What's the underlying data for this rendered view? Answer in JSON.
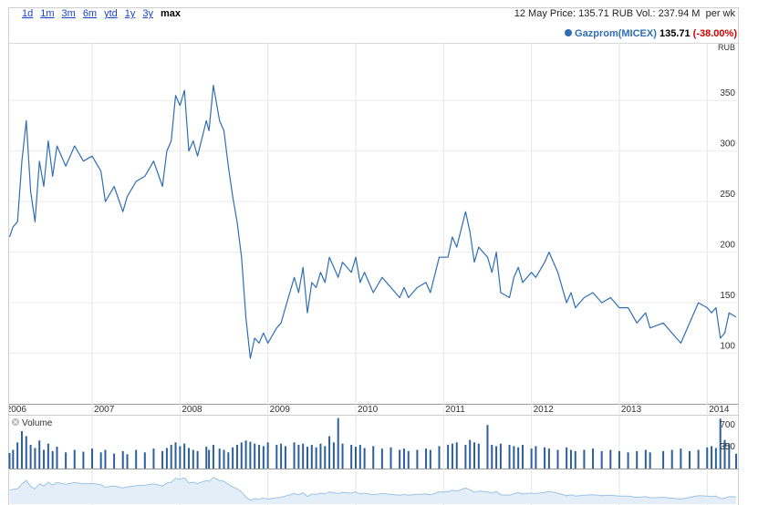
{
  "range_buttons": [
    "1d",
    "1m",
    "3m",
    "6m",
    "ytd",
    "1y",
    "3y",
    "max"
  ],
  "selected_range": "max",
  "header": {
    "date": "12 May",
    "price_label": "Price:",
    "price": 135.71,
    "currency": "RUB",
    "volume_label": "Vol.:",
    "volume": 237.94,
    "volume_unit": "M",
    "period": "per wk"
  },
  "chart_data": {
    "type": "line",
    "y_unit": "RUB",
    "legend_price": 135.71,
    "legend_change": {
      "value": -38.0,
      "label": "-38.00%"
    },
    "xlim": [
      2006.055,
      2014.34
    ],
    "xticks": [
      2006,
      2007,
      2008,
      2009,
      2010,
      2011,
      2012,
      2013,
      2014
    ],
    "ylim": [
      50,
      407
    ],
    "yticks": [
      100,
      150,
      200,
      250,
      300,
      350
    ],
    "grid": true,
    "x": [
      2006.06,
      2006.1,
      2006.15,
      2006.2,
      2006.25,
      2006.3,
      2006.35,
      2006.4,
      2006.45,
      2006.5,
      2006.55,
      2006.6,
      2006.7,
      2006.8,
      2006.9,
      2007.0,
      2007.1,
      2007.15,
      2007.25,
      2007.35,
      2007.4,
      2007.5,
      2007.6,
      2007.7,
      2007.8,
      2007.85,
      2007.9,
      2007.95,
      2008.0,
      2008.05,
      2008.1,
      2008.15,
      2008.2,
      2008.3,
      2008.33,
      2008.38,
      2008.45,
      2008.5,
      2008.55,
      2008.6,
      2008.65,
      2008.7,
      2008.75,
      2008.8,
      2008.85,
      2008.9,
      2008.95,
      2009.0,
      2009.1,
      2009.15,
      2009.2,
      2009.3,
      2009.35,
      2009.4,
      2009.45,
      2009.5,
      2009.55,
      2009.6,
      2009.65,
      2009.7,
      2009.75,
      2009.8,
      2009.85,
      2009.95,
      2010.0,
      2010.05,
      2010.1,
      2010.2,
      2010.3,
      2010.4,
      2010.5,
      2010.55,
      2010.6,
      2010.7,
      2010.8,
      2010.85,
      2010.95,
      2011.05,
      2011.1,
      2011.15,
      2011.25,
      2011.3,
      2011.35,
      2011.4,
      2011.5,
      2011.55,
      2011.6,
      2011.65,
      2011.75,
      2011.8,
      2011.85,
      2011.9,
      2012.0,
      2012.05,
      2012.15,
      2012.2,
      2012.3,
      2012.4,
      2012.45,
      2012.5,
      2012.6,
      2012.7,
      2012.8,
      2012.9,
      2013.0,
      2013.1,
      2013.2,
      2013.3,
      2013.35,
      2013.5,
      2013.6,
      2013.7,
      2013.8,
      2013.9,
      2014.0,
      2014.05,
      2014.1,
      2014.15,
      2014.2,
      2014.25,
      2014.33
    ],
    "series": [
      {
        "name": "Gazprom(MICEX)",
        "color": "#2f6eb5",
        "values": [
          215,
          225,
          230,
          290,
          330,
          260,
          230,
          290,
          265,
          310,
          275,
          305,
          285,
          305,
          290,
          295,
          280,
          250,
          265,
          240,
          255,
          270,
          275,
          290,
          265,
          300,
          310,
          355,
          345,
          360,
          300,
          310,
          295,
          330,
          320,
          365,
          330,
          320,
          285,
          255,
          230,
          195,
          135,
          95,
          115,
          110,
          120,
          110,
          125,
          130,
          145,
          175,
          160,
          185,
          140,
          170,
          165,
          180,
          170,
          195,
          185,
          175,
          190,
          180,
          195,
          170,
          180,
          160,
          175,
          165,
          155,
          165,
          155,
          165,
          170,
          160,
          195,
          195,
          215,
          205,
          240,
          220,
          190,
          205,
          195,
          180,
          200,
          160,
          155,
          175,
          185,
          170,
          180,
          175,
          190,
          200,
          180,
          150,
          160,
          145,
          155,
          160,
          150,
          155,
          145,
          145,
          130,
          140,
          125,
          130,
          120,
          110,
          130,
          150,
          145,
          140,
          145,
          115,
          120,
          140,
          135.71
        ]
      }
    ],
    "volume": {
      "label": "Volume",
      "color": "#2c5f9e",
      "ylim": [
        0,
        849
      ],
      "yticks": [
        350,
        700
      ],
      "values": [
        250,
        300,
        420,
        600,
        520,
        380,
        330,
        450,
        300,
        400,
        280,
        350,
        260,
        300,
        270,
        320,
        260,
        300,
        240,
        280,
        230,
        300,
        260,
        320,
        280,
        330,
        380,
        420,
        360,
        400,
        330,
        300,
        280,
        350,
        300,
        380,
        320,
        300,
        260,
        340,
        380,
        420,
        450,
        430,
        400,
        380,
        360,
        420,
        380,
        400,
        360,
        420,
        380,
        400,
        350,
        380,
        340,
        400,
        360,
        520,
        420,
        810,
        400,
        380,
        350,
        380,
        330,
        360,
        320,
        340,
        300,
        320,
        280,
        300,
        320,
        300,
        360,
        380,
        400,
        420,
        380,
        460,
        420,
        400,
        700,
        380,
        360,
        400,
        380,
        360,
        340,
        380,
        320,
        360,
        340,
        320,
        300,
        340,
        300,
        280,
        300,
        320,
        280,
        300,
        280,
        260,
        280,
        300,
        260,
        280,
        300,
        320,
        280,
        300,
        340,
        360,
        330,
        800,
        460,
        400,
        237.94
      ]
    }
  }
}
